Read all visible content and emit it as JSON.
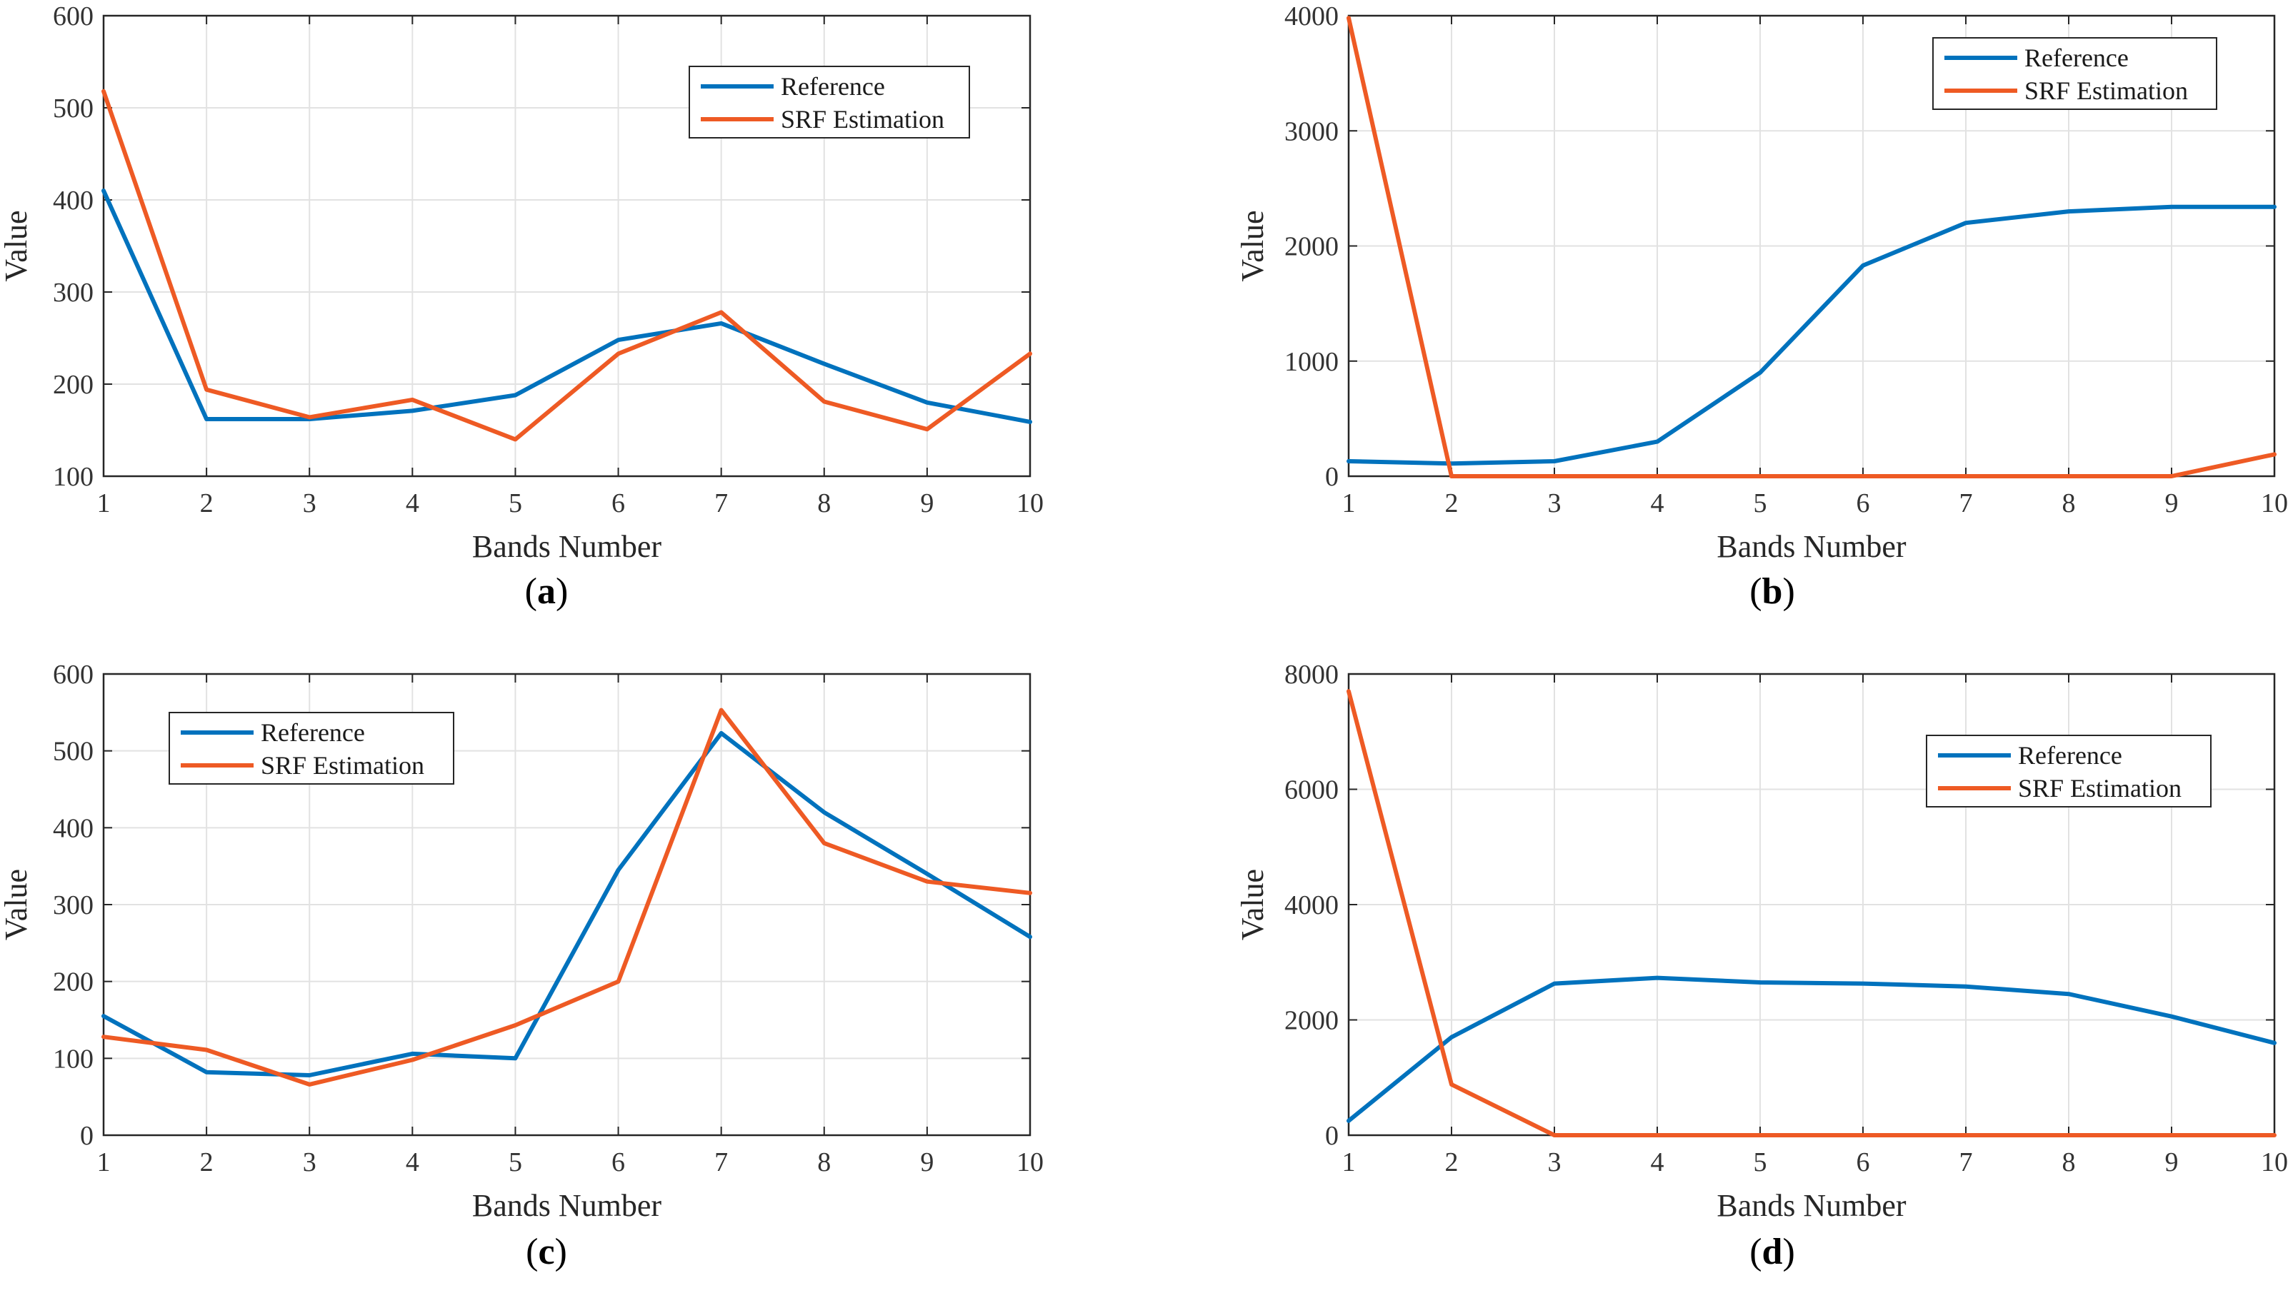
{
  "colors": {
    "reference": "#0072BD",
    "srf_estimation": "#EE5A24"
  },
  "chart_data": [
    {
      "type": "line",
      "panel": "a",
      "caption": {
        "open": "(",
        "letter": "a",
        "close": ")"
      },
      "xlabel": "Bands Number",
      "ylabel": "Value",
      "xlim": [
        1,
        10
      ],
      "ylim": [
        100,
        600
      ],
      "xticks": [
        1,
        2,
        3,
        4,
        5,
        6,
        7,
        8,
        9,
        10
      ],
      "yticks": [
        100,
        200,
        300,
        400,
        500,
        600
      ],
      "grid": true,
      "legend_position": "top-right",
      "x": [
        1,
        2,
        3,
        4,
        5,
        6,
        7,
        8,
        9,
        10
      ],
      "series": [
        {
          "name": "Reference",
          "values": [
            410,
            162,
            162,
            171,
            188,
            248,
            266,
            222,
            180,
            159
          ]
        },
        {
          "name": "SRF Estimation",
          "values": [
            518,
            194,
            164,
            183,
            140,
            233,
            278,
            181,
            151,
            233
          ]
        }
      ]
    },
    {
      "type": "line",
      "panel": "b",
      "caption": {
        "open": "(",
        "letter": "b",
        "close": ")"
      },
      "xlabel": "Bands Number",
      "ylabel": "Value",
      "xlim": [
        1,
        10
      ],
      "ylim": [
        0,
        4000
      ],
      "xticks": [
        1,
        2,
        3,
        4,
        5,
        6,
        7,
        8,
        9,
        10
      ],
      "yticks": [
        0,
        1000,
        2000,
        3000,
        4000
      ],
      "grid": true,
      "legend_position": "top-right",
      "x": [
        1,
        2,
        3,
        4,
        5,
        6,
        7,
        8,
        9,
        10
      ],
      "series": [
        {
          "name": "Reference",
          "values": [
            130,
            110,
            130,
            300,
            900,
            1830,
            2200,
            2300,
            2340,
            2340
          ]
        },
        {
          "name": "SRF Estimation",
          "values": [
            3980,
            0,
            0,
            0,
            0,
            0,
            0,
            0,
            0,
            190
          ]
        }
      ]
    },
    {
      "type": "line",
      "panel": "c",
      "caption": {
        "open": "(",
        "letter": "c",
        "close": ")"
      },
      "xlabel": "Bands Number",
      "ylabel": "Value",
      "xlim": [
        1,
        10
      ],
      "ylim": [
        0,
        600
      ],
      "xticks": [
        1,
        2,
        3,
        4,
        5,
        6,
        7,
        8,
        9,
        10
      ],
      "yticks": [
        0,
        100,
        200,
        300,
        400,
        500,
        600
      ],
      "grid": true,
      "legend_position": "top-left",
      "x": [
        1,
        2,
        3,
        4,
        5,
        6,
        7,
        8,
        9,
        10
      ],
      "series": [
        {
          "name": "Reference",
          "values": [
            155,
            82,
            78,
            106,
            100,
            345,
            523,
            420,
            340,
            258
          ]
        },
        {
          "name": "SRF Estimation",
          "values": [
            128,
            111,
            66,
            98,
            143,
            200,
            553,
            380,
            330,
            315
          ]
        }
      ]
    },
    {
      "type": "line",
      "panel": "d",
      "caption": {
        "open": "(",
        "letter": "d",
        "close": ")"
      },
      "xlabel": "Bands Number",
      "ylabel": "Value",
      "xlim": [
        1,
        10
      ],
      "ylim": [
        0,
        8000
      ],
      "xticks": [
        1,
        2,
        3,
        4,
        5,
        6,
        7,
        8,
        9,
        10
      ],
      "yticks": [
        0,
        2000,
        4000,
        6000,
        8000
      ],
      "grid": true,
      "legend_position": "top-right",
      "x": [
        1,
        2,
        3,
        4,
        5,
        6,
        7,
        8,
        9,
        10
      ],
      "series": [
        {
          "name": "Reference",
          "values": [
            250,
            1700,
            2630,
            2730,
            2650,
            2630,
            2580,
            2450,
            2060,
            1600
          ]
        },
        {
          "name": "SRF Estimation",
          "values": [
            7700,
            880,
            0,
            0,
            0,
            0,
            0,
            0,
            0,
            0
          ]
        }
      ]
    }
  ]
}
